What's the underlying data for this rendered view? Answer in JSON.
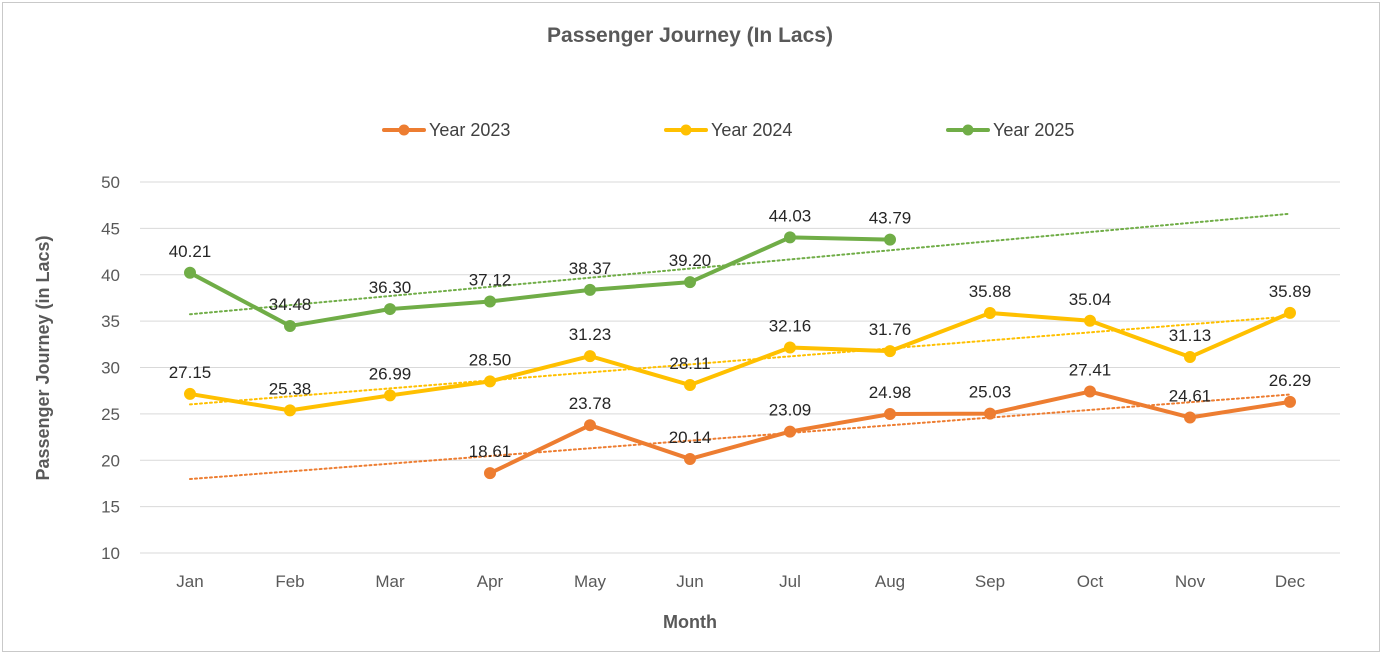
{
  "chart_data": {
    "type": "line",
    "title": "Passenger Journey (In Lacs)",
    "xlabel": "Month",
    "ylabel": "Passenger Journey (in Lacs)",
    "ylim": [
      10,
      50
    ],
    "yticks": [
      "10",
      "15",
      "20",
      "25",
      "30",
      "35",
      "40",
      "45",
      "50"
    ],
    "categories": [
      "Jan",
      "Feb",
      "Mar",
      "Apr",
      "May",
      "Jun",
      "Jul",
      "Aug",
      "Sep",
      "Oct",
      "Nov",
      "Dec"
    ],
    "grid": true,
    "legend_position": "top",
    "trendlines": "linear, dotted, one per series",
    "series": [
      {
        "name": "Year 2023",
        "color": "#ED7D31",
        "values": [
          null,
          null,
          null,
          18.61,
          23.78,
          20.14,
          23.09,
          24.98,
          25.03,
          27.41,
          24.61,
          26.29
        ],
        "labels": [
          "",
          "",
          "",
          "18.61",
          "23.78",
          "20.14",
          "23.09",
          "24.98",
          "25.03",
          "27.41",
          "24.61",
          "26.29"
        ]
      },
      {
        "name": "Year 2024",
        "color": "#FFC000",
        "values": [
          27.15,
          25.38,
          26.99,
          28.5,
          31.23,
          28.11,
          32.16,
          31.76,
          35.88,
          35.04,
          31.13,
          35.89
        ],
        "labels": [
          "27.15",
          "25.38",
          "26.99",
          "28.50",
          "31.23",
          "28.11",
          "32.16",
          "31.76",
          "35.88",
          "35.04",
          "31.13",
          "35.89"
        ]
      },
      {
        "name": "Year 2025",
        "color": "#70AD47",
        "values": [
          40.21,
          34.48,
          36.3,
          37.12,
          38.37,
          39.2,
          44.03,
          43.79,
          null,
          null,
          null,
          null
        ],
        "labels": [
          "40.21",
          "34.48",
          "36.30",
          "37.12",
          "38.37",
          "39.20",
          "44.03",
          "43.79",
          "",
          "",
          "",
          ""
        ]
      }
    ]
  }
}
